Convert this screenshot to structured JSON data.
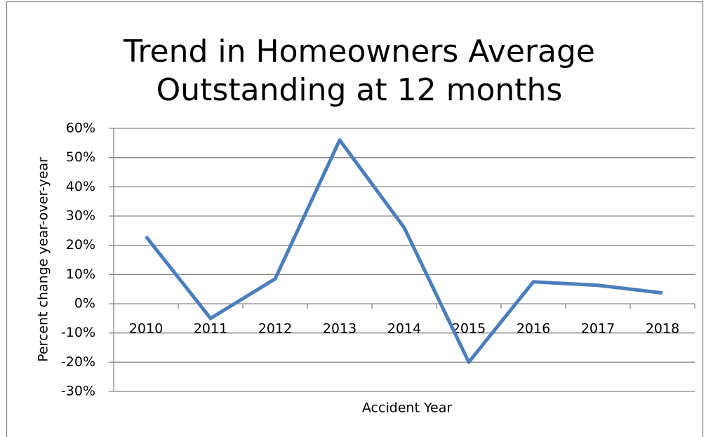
{
  "chart_data": {
    "type": "line",
    "title": [
      "Trend in Homeowners Average",
      "Outstanding at 12 months"
    ],
    "x_label": "Accident Year",
    "y_label": "Percent change year-over-year",
    "categories": [
      "2010",
      "2011",
      "2012",
      "2013",
      "2014",
      "2015",
      "2016",
      "2017",
      "2018"
    ],
    "values": [
      23,
      -5,
      8.5,
      56,
      26,
      -20,
      7.5,
      6.3,
      3.7
    ],
    "color": "#4a7ebb",
    "ylim": [
      -30,
      60
    ],
    "yticks": [
      {
        "value": -30,
        "label": "-30%"
      },
      {
        "value": -20,
        "label": "-20%"
      },
      {
        "value": -10,
        "label": "-10%"
      },
      {
        "value": 0,
        "label": "0%"
      },
      {
        "value": 10,
        "label": "10%"
      },
      {
        "value": 20,
        "label": "20%"
      },
      {
        "value": 30,
        "label": "30%"
      },
      {
        "value": 40,
        "label": "40%"
      },
      {
        "value": 50,
        "label": "50%"
      },
      {
        "value": 60,
        "label": "60%"
      }
    ],
    "grid": true
  }
}
